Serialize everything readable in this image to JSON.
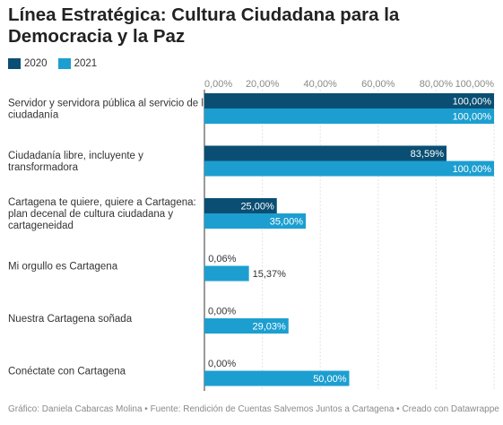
{
  "title": "Línea Estratégica: Cultura Ciudadana para la Democracia y la Paz",
  "legend": [
    {
      "name": "2020",
      "color": "#0a4f73"
    },
    {
      "name": "2021",
      "color": "#1c9fd0"
    }
  ],
  "footer": "Gráfico: Daniela Cabarcas Molina • Fuente: Rendición de Cuentas Salvemos Juntos a Cartagena • Creado con Datawrapper",
  "chart_data": {
    "type": "bar",
    "orientation": "horizontal",
    "x_ticks": [
      "0,00%",
      "20,00%",
      "40,00%",
      "60,00%",
      "80,00%",
      "100,00%"
    ],
    "xlim": [
      0,
      100
    ],
    "grid": true,
    "legend_position": "top-left",
    "categories": [
      [
        "Servidor y servidora pública al servicio de la",
        "ciudadanía"
      ],
      [
        "Ciudadanía libre, incluyente y",
        "transformadora"
      ],
      [
        "Cartagena te quiere, quiere a Cartagena:",
        "plan decenal de cultura ciudadana y",
        "cartageneidad"
      ],
      [
        "Mi orgullo es Cartagena"
      ],
      [
        "Nuestra Cartagena soñada"
      ],
      [
        "Conéctate con Cartagena"
      ]
    ],
    "series": [
      {
        "name": "2020",
        "color": "#0a4f73",
        "values": [
          100,
          83.59,
          25,
          0.06,
          0,
          0
        ],
        "labels": [
          "100,00%",
          "83,59%",
          "25,00%",
          "0,06%",
          "0,00%",
          "0,00%"
        ]
      },
      {
        "name": "2021",
        "color": "#1c9fd0",
        "values": [
          100,
          100,
          35,
          15.37,
          29.03,
          50
        ],
        "labels": [
          "100,00%",
          "100,00%",
          "35,00%",
          "15,37%",
          "29,03%",
          "50,00%"
        ]
      }
    ]
  }
}
